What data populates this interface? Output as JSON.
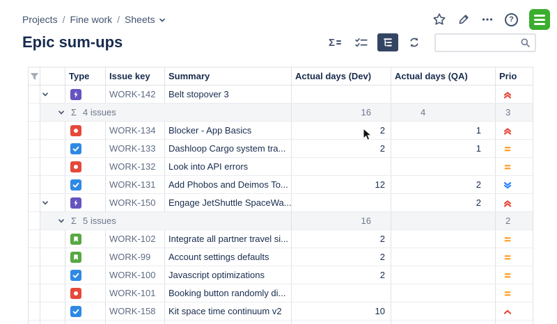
{
  "breadcrumb": {
    "items": [
      "Projects",
      "Fine work",
      "Sheets"
    ],
    "separator": "/"
  },
  "page": {
    "title": "Epic sum-ups"
  },
  "icons": {
    "sigma": "Σ",
    "help": "?"
  },
  "toolbar": {
    "buttons": [
      {
        "name": "sum-ups",
        "active": false
      },
      {
        "name": "checklist",
        "active": false
      },
      {
        "name": "hierarchy",
        "active": true
      },
      {
        "name": "refresh",
        "active": false
      }
    ],
    "search": {
      "value": "",
      "placeholder": ""
    }
  },
  "table": {
    "columns": [
      "Type",
      "Issue key",
      "Summary",
      "Actual days (Dev)",
      "Actual days (QA)",
      "Prio"
    ],
    "rows": [
      {
        "kind": "issue",
        "depth": 0,
        "expandable": true,
        "type": "epic",
        "key": "WORK-142",
        "summary": "Belt stopover 3",
        "dev": "",
        "qa": "",
        "prio": "highest"
      },
      {
        "kind": "sum",
        "depth": 1,
        "expandable": true,
        "label": "4 issues",
        "dev": "16",
        "qa": "4",
        "prio": "3"
      },
      {
        "kind": "issue",
        "depth": 2,
        "expandable": false,
        "type": "bug",
        "key": "WORK-134",
        "summary": "Blocker - App Basics",
        "dev": "2",
        "qa": "1",
        "prio": "highest"
      },
      {
        "kind": "issue",
        "depth": 2,
        "expandable": false,
        "type": "task",
        "key": "WORK-133",
        "summary": "Dashloop Cargo system tra...",
        "dev": "2",
        "qa": "1",
        "prio": "medium"
      },
      {
        "kind": "issue",
        "depth": 2,
        "expandable": false,
        "type": "bug",
        "key": "WORK-132",
        "summary": "Look into API errors",
        "dev": "",
        "qa": "",
        "prio": "medium"
      },
      {
        "kind": "issue",
        "depth": 2,
        "expandable": false,
        "type": "task",
        "key": "WORK-131",
        "summary": "Add Phobos and Deimos To...",
        "dev": "12",
        "qa": "2",
        "prio": "lowest"
      },
      {
        "kind": "issue",
        "depth": 0,
        "expandable": true,
        "type": "epic",
        "key": "WORK-150",
        "summary": "Engage JetShuttle SpaceWa...",
        "dev": "",
        "qa": "2",
        "prio": "highest"
      },
      {
        "kind": "sum",
        "depth": 1,
        "expandable": true,
        "label": "5 issues",
        "dev": "16",
        "qa": "",
        "prio": "2"
      },
      {
        "kind": "issue",
        "depth": 2,
        "expandable": false,
        "type": "story",
        "key": "WORK-102",
        "summary": "Integrate all partner travel si...",
        "dev": "2",
        "qa": "",
        "prio": "medium"
      },
      {
        "kind": "issue",
        "depth": 2,
        "expandable": false,
        "type": "story",
        "key": "WORK-99",
        "summary": "Account settings defaults",
        "dev": "2",
        "qa": "",
        "prio": "medium"
      },
      {
        "kind": "issue",
        "depth": 2,
        "expandable": false,
        "type": "task",
        "key": "WORK-100",
        "summary": "Javascript optimizations",
        "dev": "2",
        "qa": "",
        "prio": "medium"
      },
      {
        "kind": "issue",
        "depth": 2,
        "expandable": false,
        "type": "bug",
        "key": "WORK-101",
        "summary": "Booking button randomly di...",
        "dev": "",
        "qa": "",
        "prio": "medium"
      },
      {
        "kind": "issue",
        "depth": 2,
        "expandable": false,
        "type": "task",
        "key": "WORK-158",
        "summary": "Kit space time continuum v2",
        "dev": "10",
        "qa": "",
        "prio": "high"
      },
      {
        "kind": "issue",
        "depth": 0,
        "expandable": true,
        "type": "epic",
        "key": "",
        "summary": "",
        "dev": "",
        "qa": "",
        "prio": ""
      }
    ]
  },
  "colors": {
    "accent": "#344563",
    "epic": "#6554C0",
    "bug": "#E5493A",
    "task": "#2E89E5",
    "story": "#57A843",
    "prio_high": "#E5493A",
    "prio_medium": "#FF991F",
    "prio_low": "#2684FF",
    "sum_bg": "#F4F5F7",
    "logo_green": "#3CAE2F"
  }
}
